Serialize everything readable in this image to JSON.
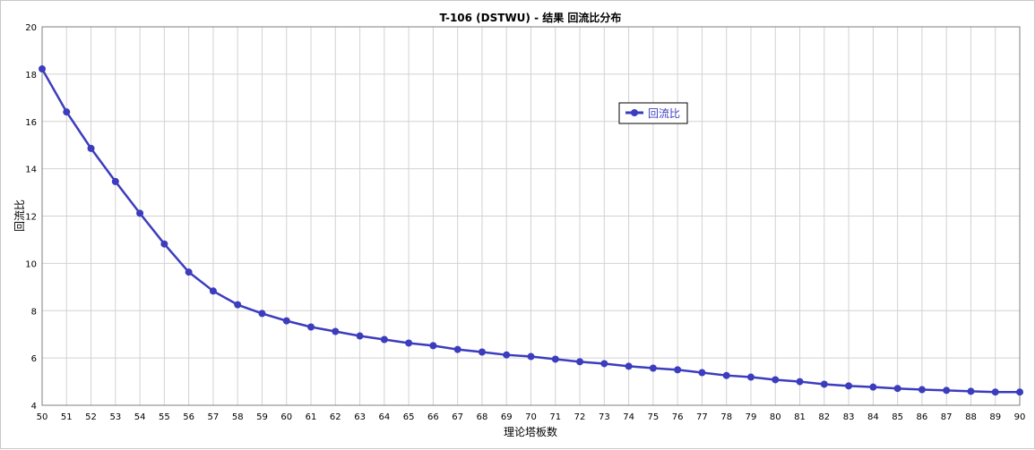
{
  "chart_data": {
    "type": "line",
    "title": "T-106 (DSTWU) - 结果 回流比分布",
    "xlabel": "理论塔板数",
    "ylabel": "回流比",
    "xlim": [
      50,
      90
    ],
    "ylim": [
      4,
      20
    ],
    "x_ticks": [
      50,
      51,
      52,
      53,
      54,
      55,
      56,
      57,
      58,
      59,
      60,
      61,
      62,
      63,
      64,
      65,
      66,
      67,
      68,
      69,
      70,
      71,
      72,
      73,
      74,
      75,
      76,
      77,
      78,
      79,
      80,
      81,
      82,
      83,
      84,
      85,
      86,
      87,
      88,
      89,
      90
    ],
    "y_ticks": [
      4,
      6,
      8,
      10,
      12,
      14,
      16,
      18,
      20
    ],
    "grid": true,
    "legend_position": "upper-middle-right",
    "series": [
      {
        "name": "回流比",
        "color": "#3c3cbe",
        "marker": "circle",
        "x": [
          50,
          51,
          52,
          53,
          54,
          55,
          56,
          57,
          58,
          59,
          60,
          61,
          62,
          63,
          64,
          65,
          66,
          67,
          68,
          69,
          70,
          71,
          72,
          73,
          74,
          75,
          76,
          77,
          78,
          79,
          80,
          81,
          82,
          83,
          84,
          85,
          86,
          87,
          88,
          89,
          90
        ],
        "y": [
          18.22,
          16.4,
          14.86,
          13.46,
          12.12,
          10.82,
          9.63,
          8.83,
          8.25,
          7.88,
          7.57,
          7.31,
          7.12,
          6.93,
          6.78,
          6.63,
          6.52,
          6.36,
          6.25,
          6.13,
          6.06,
          5.95,
          5.84,
          5.76,
          5.65,
          5.57,
          5.5,
          5.38,
          5.26,
          5.19,
          5.08,
          5.0,
          4.89,
          4.82,
          4.77,
          4.71,
          4.66,
          4.63,
          4.59,
          4.56,
          4.56
        ]
      }
    ]
  }
}
